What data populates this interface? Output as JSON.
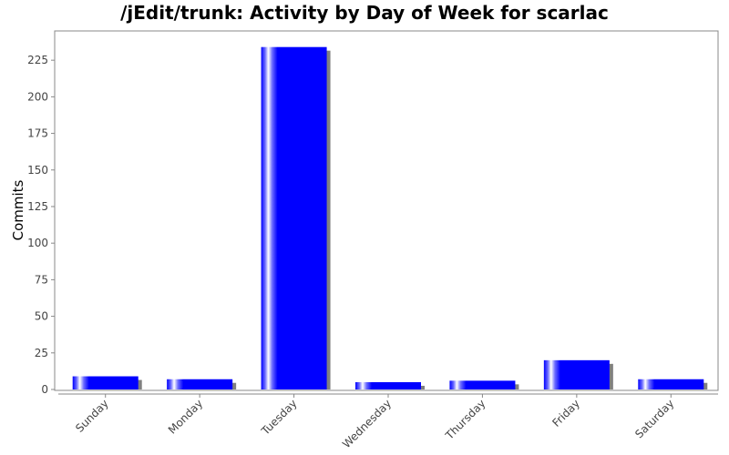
{
  "chart_data": {
    "type": "bar",
    "title": "/jEdit/trunk: Activity by Day of Week for scarlac",
    "xlabel": "",
    "ylabel": "Commits",
    "categories": [
      "Sunday",
      "Monday",
      "Tuesday",
      "Wednesday",
      "Thursday",
      "Friday",
      "Saturday"
    ],
    "values": [
      9,
      7,
      234,
      5,
      6,
      20,
      7
    ],
    "ylim": [
      0,
      245
    ],
    "yticks": [
      0,
      25,
      50,
      75,
      100,
      125,
      150,
      175,
      200,
      225
    ],
    "grid": false,
    "legend": "none",
    "bar_color": "#0000ff",
    "shadow_color": "#808080"
  }
}
